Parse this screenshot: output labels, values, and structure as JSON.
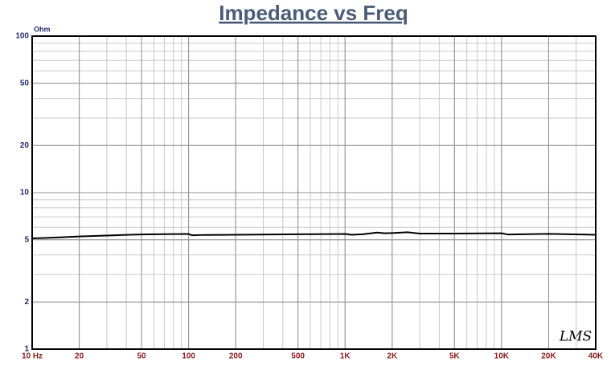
{
  "chart_data": {
    "type": "line",
    "title": "Impedance vs Freq",
    "y_unit": "Ohm",
    "logo": "LMS",
    "log_x": true,
    "log_y": true,
    "grid": true,
    "x": [
      10,
      12,
      15,
      20,
      30,
      40,
      50,
      70,
      100,
      105,
      120,
      200,
      500,
      1000,
      1100,
      1300,
      1600,
      1800,
      2000,
      2500,
      3000,
      5000,
      10000,
      11000,
      20000,
      40000
    ],
    "series": [
      {
        "name": "Impedance",
        "color": "#000000",
        "values": [
          5.1,
          5.13,
          5.18,
          5.25,
          5.32,
          5.37,
          5.4,
          5.43,
          5.44,
          5.34,
          5.36,
          5.38,
          5.42,
          5.44,
          5.38,
          5.42,
          5.56,
          5.5,
          5.52,
          5.58,
          5.48,
          5.48,
          5.5,
          5.4,
          5.45,
          5.38
        ]
      }
    ],
    "xlim": [
      10,
      40000
    ],
    "ylim": [
      1,
      100
    ],
    "xticks": [
      {
        "value": 10,
        "label": "10 Hz"
      },
      20,
      50,
      100,
      200,
      500,
      {
        "value": 1000,
        "label": "1K"
      },
      {
        "value": 2000,
        "label": "2K"
      },
      {
        "value": 5000,
        "label": "5K"
      },
      {
        "value": 10000,
        "label": "10K"
      },
      {
        "value": 20000,
        "label": "20K"
      },
      {
        "value": 40000,
        "label": "40K"
      }
    ],
    "yticks": [
      1,
      2,
      5,
      10,
      20,
      50,
      100
    ]
  }
}
